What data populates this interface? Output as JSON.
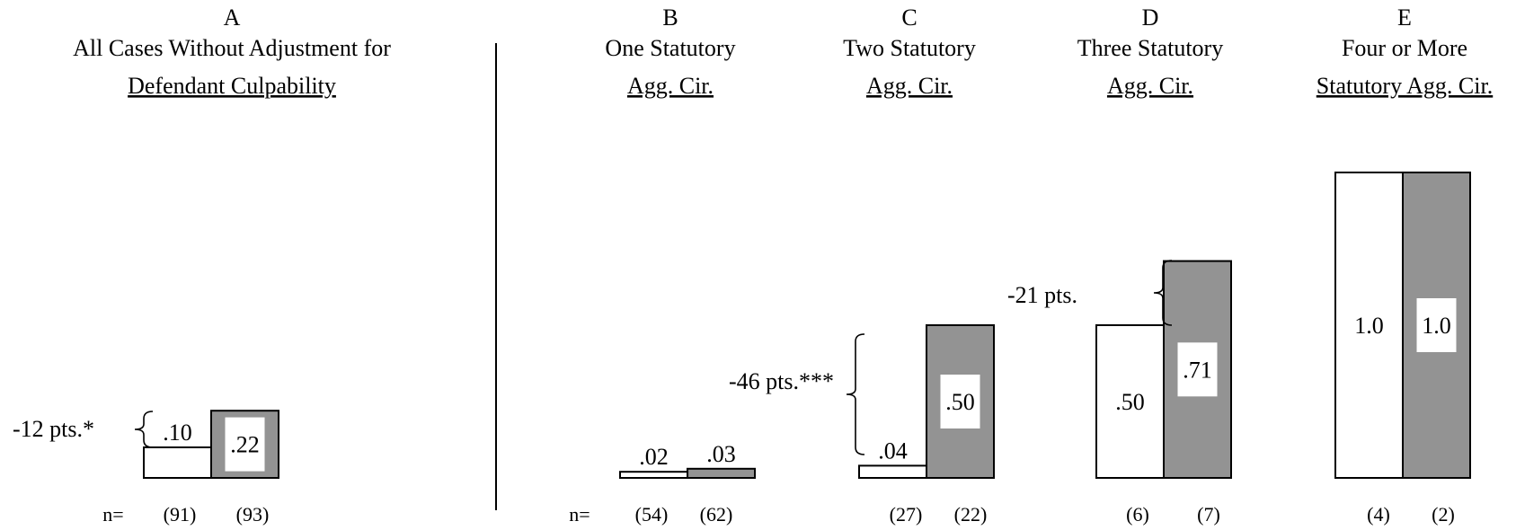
{
  "chart_data": {
    "type": "bar",
    "ylim": [
      0,
      1.0
    ],
    "grid": false,
    "legend": "none",
    "colors": {
      "first_bar": "#ffffff",
      "second_bar": "#939393",
      "outline": "#000000"
    },
    "n_prefix": "n=",
    "panels": [
      {
        "letter": "A",
        "title_lines": [
          "All Cases Without Adjustment for",
          "Defendant Culpability"
        ],
        "values": [
          0.1,
          0.22
        ],
        "value_labels": [
          ".10",
          ".22"
        ],
        "n_labels": [
          "(91)",
          "(93)"
        ],
        "show_n_prefix": true,
        "difference": "-12 pts.*"
      },
      {
        "letter": "B",
        "title_lines": [
          "One Statutory",
          "Agg. Cir."
        ],
        "values": [
          0.02,
          0.03
        ],
        "value_labels": [
          ".02",
          ".03"
        ],
        "n_labels": [
          "(54)",
          "(62)"
        ],
        "show_n_prefix": true,
        "difference": ""
      },
      {
        "letter": "C",
        "title_lines": [
          "Two Statutory",
          "Agg. Cir."
        ],
        "values": [
          0.04,
          0.5
        ],
        "value_labels": [
          ".04",
          ".50"
        ],
        "n_labels": [
          "(27)",
          "(22)"
        ],
        "show_n_prefix": false,
        "difference": "-46 pts.***"
      },
      {
        "letter": "D",
        "title_lines": [
          "Three Statutory",
          "Agg. Cir."
        ],
        "values": [
          0.5,
          0.71
        ],
        "value_labels": [
          ".50",
          ".71"
        ],
        "n_labels": [
          "(6)",
          "(7)"
        ],
        "show_n_prefix": false,
        "difference": "-21 pts."
      },
      {
        "letter": "E",
        "title_lines": [
          "Four or More",
          "Statutory Agg. Cir."
        ],
        "values": [
          1.0,
          1.0
        ],
        "value_labels": [
          "1.0",
          "1.0"
        ],
        "n_labels": [
          "(4)",
          "(2)"
        ],
        "show_n_prefix": false,
        "difference": ""
      }
    ]
  }
}
